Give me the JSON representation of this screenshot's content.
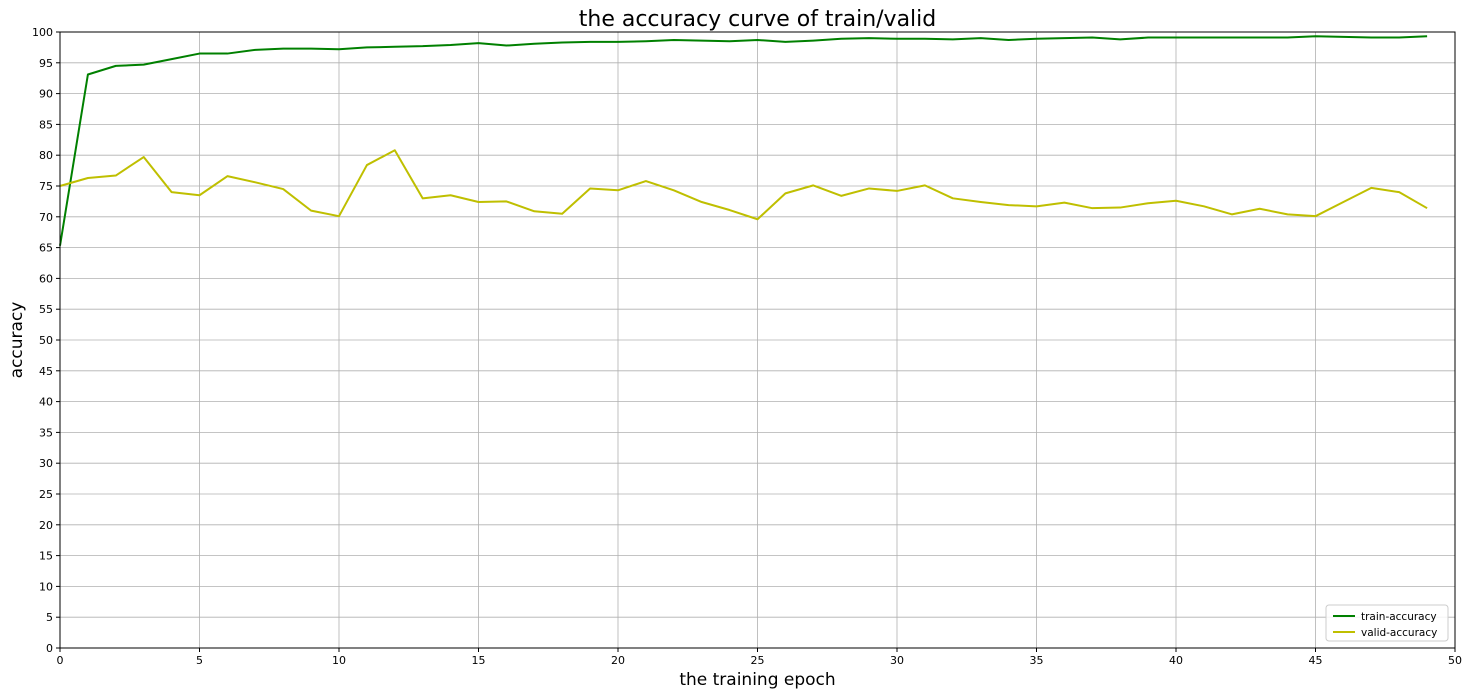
{
  "chart_data": {
    "type": "line",
    "title": "the accuracy curve of train/valid",
    "xlabel": "the training epoch",
    "ylabel": "accuracy",
    "xlim": [
      0,
      50
    ],
    "ylim": [
      0,
      100
    ],
    "xticks": [
      0,
      5,
      10,
      15,
      20,
      25,
      30,
      35,
      40,
      45,
      50
    ],
    "yticks": [
      0,
      5,
      10,
      15,
      20,
      25,
      30,
      35,
      40,
      45,
      50,
      55,
      60,
      65,
      70,
      75,
      80,
      85,
      90,
      95,
      100
    ],
    "grid": true,
    "legend_position": "bottom-right",
    "x": [
      0,
      1,
      2,
      3,
      4,
      5,
      6,
      7,
      8,
      9,
      10,
      11,
      12,
      13,
      14,
      15,
      16,
      17,
      18,
      19,
      20,
      21,
      22,
      23,
      24,
      25,
      26,
      27,
      28,
      29,
      30,
      31,
      32,
      33,
      34,
      35,
      36,
      37,
      38,
      39,
      40,
      41,
      42,
      43,
      44,
      45,
      46,
      47,
      48,
      49
    ],
    "series": [
      {
        "name": "train-accuracy",
        "color": "#008000",
        "values": [
          65.3,
          93.1,
          94.5,
          94.7,
          95.6,
          96.5,
          96.5,
          97.1,
          97.3,
          97.3,
          97.2,
          97.5,
          97.6,
          97.7,
          97.9,
          98.2,
          97.8,
          98.1,
          98.3,
          98.4,
          98.4,
          98.5,
          98.7,
          98.6,
          98.5,
          98.7,
          98.4,
          98.6,
          98.9,
          99.0,
          98.9,
          98.9,
          98.8,
          99.0,
          98.7,
          98.9,
          99.0,
          99.1,
          98.8,
          99.1,
          99.1,
          99.1,
          99.1,
          99.1,
          99.1,
          99.3,
          99.2,
          99.1,
          99.1,
          99.3
        ]
      },
      {
        "name": "valid-accuracy",
        "color": "#bfbf00",
        "values": [
          75.0,
          76.3,
          76.7,
          79.7,
          74.0,
          73.5,
          76.6,
          75.6,
          74.5,
          71.0,
          70.1,
          78.4,
          80.8,
          73.0,
          73.5,
          72.4,
          72.5,
          70.9,
          70.5,
          74.6,
          74.3,
          75.8,
          74.3,
          72.4,
          71.1,
          69.6,
          73.8,
          75.1,
          73.4,
          74.6,
          74.2,
          75.1,
          73.0,
          72.4,
          71.9,
          71.7,
          72.3,
          71.4,
          71.5,
          72.2,
          72.6,
          71.7,
          70.4,
          71.3,
          70.4,
          70.1,
          72.4,
          74.7,
          74.0,
          71.4
        ]
      }
    ]
  }
}
